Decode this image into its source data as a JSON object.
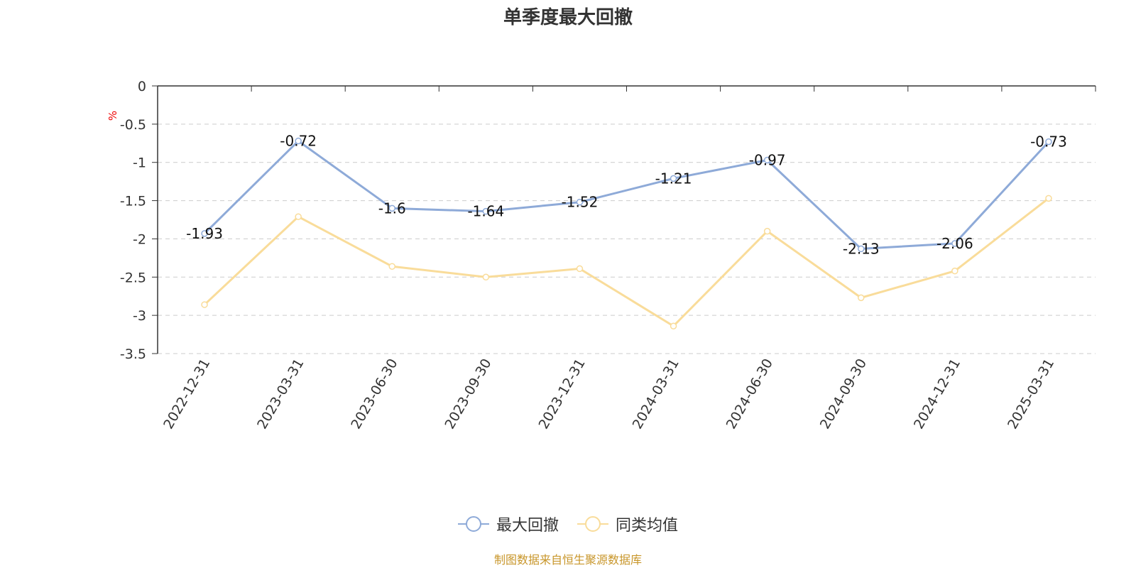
{
  "chart_data": {
    "type": "line",
    "title": "单季度最大回撤",
    "ylabel": "%",
    "categories": [
      "2022-12-31",
      "2023-03-31",
      "2023-06-30",
      "2023-09-30",
      "2023-12-31",
      "2024-03-31",
      "2024-06-30",
      "2024-09-30",
      "2024-12-31",
      "2025-03-31"
    ],
    "ylim": [
      -3.5,
      0
    ],
    "yticks": [
      "0",
      "-0.5",
      "-1",
      "-1.5",
      "-2",
      "-2.5",
      "-3",
      "-3.5"
    ],
    "grid": true,
    "legend_position": "bottom",
    "series": [
      {
        "name": "最大回撤",
        "color": "#8eaad8",
        "values": [
          -1.93,
          -0.72,
          -1.6,
          -1.64,
          -1.52,
          -1.21,
          -0.97,
          -2.13,
          -2.06,
          -0.73
        ],
        "labels": [
          "-1.93",
          "-0.72",
          "-1.6",
          "-1.64",
          "-1.52",
          "-1.21",
          "-0.97",
          "-2.13",
          "-2.06",
          "-0.73"
        ]
      },
      {
        "name": "同类均值",
        "color": "#f9dc9a",
        "values": [
          -2.86,
          -1.71,
          -2.36,
          -2.5,
          -2.39,
          -3.14,
          -1.9,
          -2.77,
          -2.42,
          -1.47
        ]
      }
    ]
  },
  "legend": {
    "items": [
      "最大回撤",
      "同类均值"
    ]
  },
  "source_note": "制图数据来自恒生聚源数据库"
}
